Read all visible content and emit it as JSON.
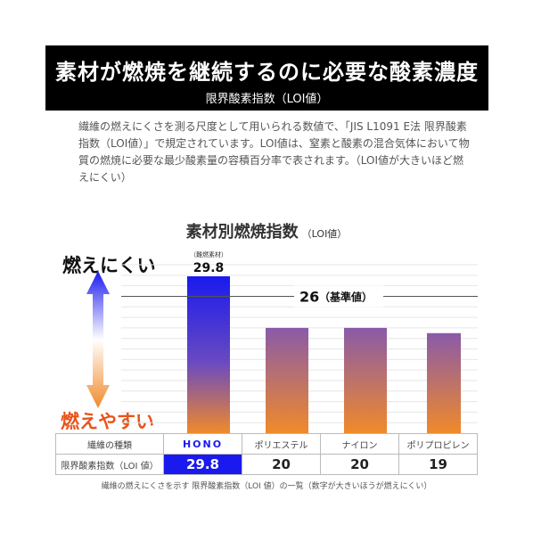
{
  "banner": {
    "title": "素材が燃焼を継続するのに必要な酸素濃度",
    "subtitle": "限界酸素指数（LOI値）"
  },
  "description": "繊維の燃えにくさを測る尺度として用いられる数値で、「JIS L1091 E法 限界酸素指数（LOI値）」で規定されています。LOI値は、窒素と酸素の混合気体において物質の燃焼に必要な最少酸素量の容積百分率で表されます。（LOI値が大きいほど燃えにくい）",
  "chart_data": {
    "type": "bar",
    "title": "素材別燃焼指数",
    "title_unit": "（LOI値）",
    "categories": [
      "HONO",
      "ポリエステル",
      "ナイロン",
      "ポリプロピレン"
    ],
    "values": [
      29.8,
      20,
      20,
      19
    ],
    "value_labels": [
      "29.8",
      "20",
      "20",
      "19"
    ],
    "highlight_note": "（難燃素材）",
    "reference_line": {
      "value": 26,
      "label": "26",
      "label_suffix": "（基準値）"
    },
    "ylim": [
      0,
      32
    ],
    "grid": true,
    "colors": {
      "highlight": "#1a1aee",
      "top": "#7a5ab0",
      "bottom": "#f08a2a"
    }
  },
  "scale_labels": {
    "top": "燃えにくい",
    "bottom": "燃えやすい"
  },
  "table": {
    "row1_label": "繊維の種類",
    "row2_label": "限界酸素指数（LOI 値）"
  },
  "footnote": "繊維の燃えにくさを示す 限界酸素指数（LOI 値）の一覧（数字が大きいほうが燃えにくい）"
}
